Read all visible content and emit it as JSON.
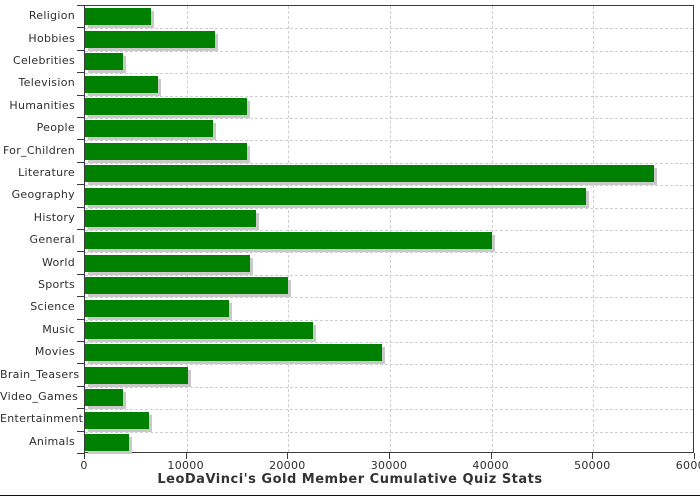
{
  "title": "LeoDaVinci's Gold Member Cumulative Quiz Stats",
  "chart_data": {
    "type": "bar",
    "orientation": "horizontal",
    "title": "LeoDaVinci's Gold Member Cumulative Quiz Stats",
    "xlabel": "",
    "ylabel": "",
    "categories": [
      "Religion",
      "Hobbies",
      "Celebrities",
      "Television",
      "Humanities",
      "People",
      "For_Children",
      "Literature",
      "Geography",
      "History",
      "General",
      "World",
      "Sports",
      "Science",
      "Music",
      "Movies",
      "Brain_Teasers",
      "Video_Games",
      "Entertainment",
      "Animals"
    ],
    "values": [
      6500,
      12800,
      3700,
      7200,
      15900,
      12600,
      15900,
      56000,
      49300,
      16800,
      40000,
      16200,
      20000,
      14200,
      22400,
      29200,
      10100,
      3700,
      6300,
      4300
    ],
    "xlim": [
      0,
      60000
    ],
    "x_ticks": [
      0,
      10000,
      20000,
      30000,
      40000,
      50000,
      60000
    ],
    "grid": "dashed, both axes",
    "legend": "none",
    "bar_color": "#008000",
    "shadow_color": "#c9c9c9",
    "grid_color": "#cfcfcf",
    "axis_color": "#3c3c3c",
    "text_color": "#2e2e2e"
  }
}
